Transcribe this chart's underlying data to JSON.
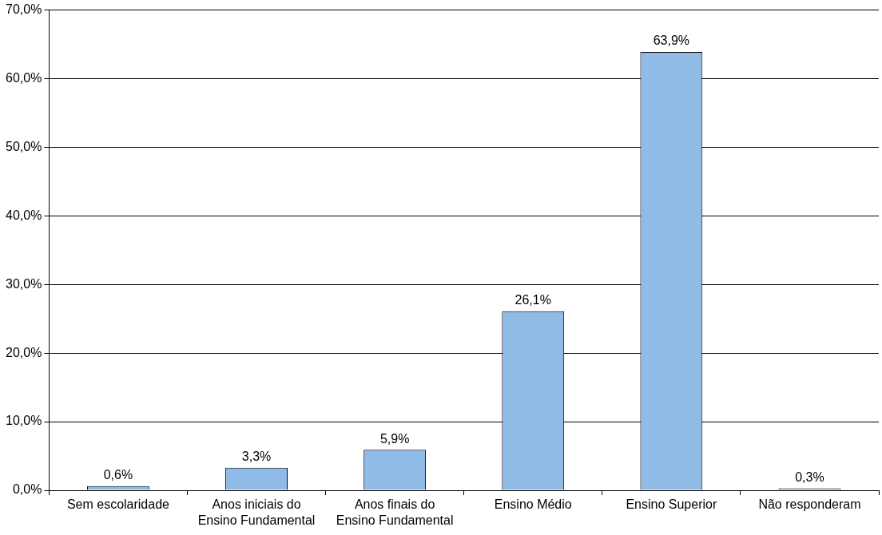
{
  "chart_data": {
    "type": "bar",
    "categories": [
      "Sem escolaridade",
      "Anos iniciais do Ensino Fundamental",
      "Anos finais do Ensino Fundamental",
      "Ensino Médio",
      "Ensino Superior",
      "Não responderam"
    ],
    "values": [
      0.6,
      3.3,
      5.9,
      26.1,
      63.9,
      0.3
    ],
    "value_labels": [
      "0,6%",
      "3,3%",
      "5,9%",
      "26,1%",
      "63,9%",
      "0,3%"
    ],
    "color": "#8fbbe6",
    "ylim": [
      0,
      70
    ],
    "yticks": [
      {
        "value": 0,
        "label": "0,0%"
      },
      {
        "value": 10,
        "label": "10,0%"
      },
      {
        "value": 20,
        "label": "20,0%"
      },
      {
        "value": 30,
        "label": "30,0%"
      },
      {
        "value": 40,
        "label": "40,0%"
      },
      {
        "value": 50,
        "label": "50,0%"
      },
      {
        "value": 60,
        "label": "60,0%"
      },
      {
        "value": 70,
        "label": "70,0%"
      }
    ],
    "grid": "y",
    "legend": false
  }
}
